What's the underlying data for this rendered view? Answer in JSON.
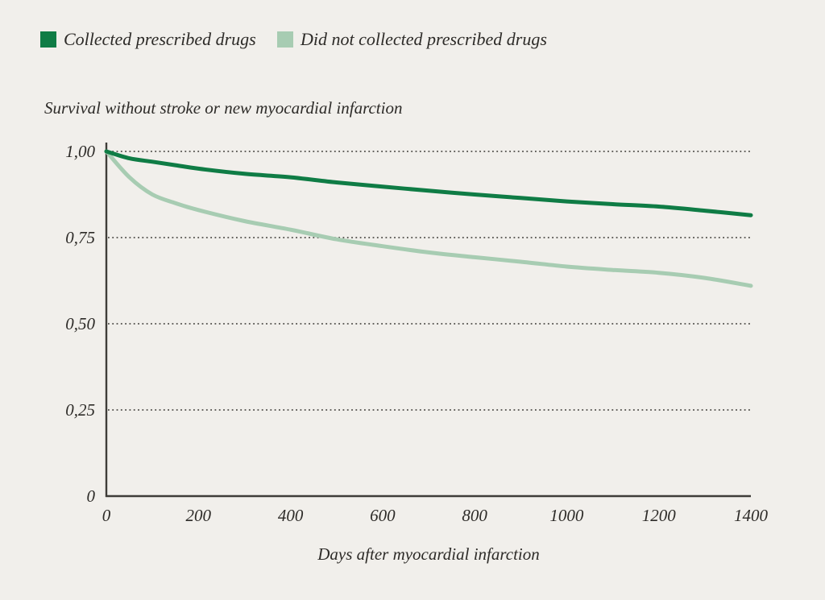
{
  "colors": {
    "background": "#f1efeb",
    "text": "#2d2b28",
    "axis": "#3e3c38",
    "grid": "#4f4d49",
    "series_dark_green": "#0f7c45",
    "series_light_green": "#a7ccb2"
  },
  "legend": {
    "items": [
      {
        "label": "Collected prescribed drugs",
        "color": "#0f7c45"
      },
      {
        "label": "Did not collected prescribed drugs",
        "color": "#a7ccb2"
      }
    ]
  },
  "chart_data": {
    "type": "line",
    "title": "Survival without stroke or new myocardial infarction",
    "xlabel": "Days after myocardial infarction",
    "ylabel": "",
    "xlim": [
      0,
      1400
    ],
    "ylim": [
      0,
      1
    ],
    "grid": "horizontal-dotted",
    "legend_position": "top-left",
    "x": [
      0,
      50,
      100,
      150,
      200,
      300,
      400,
      500,
      600,
      700,
      800,
      900,
      1000,
      1100,
      1200,
      1300,
      1400
    ],
    "series": [
      {
        "name": "Collected prescribed drugs",
        "color": "#0f7c45",
        "values": [
          1.0,
          0.98,
          0.97,
          0.96,
          0.95,
          0.935,
          0.925,
          0.91,
          0.898,
          0.886,
          0.875,
          0.865,
          0.855,
          0.847,
          0.84,
          0.828,
          0.815
        ]
      },
      {
        "name": "Did not collected prescribed drugs",
        "color": "#a7ccb2",
        "values": [
          1.0,
          0.925,
          0.875,
          0.85,
          0.83,
          0.798,
          0.773,
          0.745,
          0.725,
          0.707,
          0.693,
          0.68,
          0.666,
          0.656,
          0.648,
          0.633,
          0.61
        ]
      }
    ],
    "y_ticks": [
      {
        "v": 0,
        "label": "0"
      },
      {
        "v": 0.25,
        "label": "0,25"
      },
      {
        "v": 0.5,
        "label": "0,50"
      },
      {
        "v": 0.75,
        "label": "0,75"
      },
      {
        "v": 1,
        "label": "1,00"
      }
    ],
    "x_ticks": [
      {
        "v": 0,
        "label": "0"
      },
      {
        "v": 200,
        "label": "200"
      },
      {
        "v": 400,
        "label": "400"
      },
      {
        "v": 600,
        "label": "600"
      },
      {
        "v": 800,
        "label": "800"
      },
      {
        "v": 1000,
        "label": "1000"
      },
      {
        "v": 1200,
        "label": "1200"
      },
      {
        "v": 1400,
        "label": "1400"
      }
    ]
  }
}
